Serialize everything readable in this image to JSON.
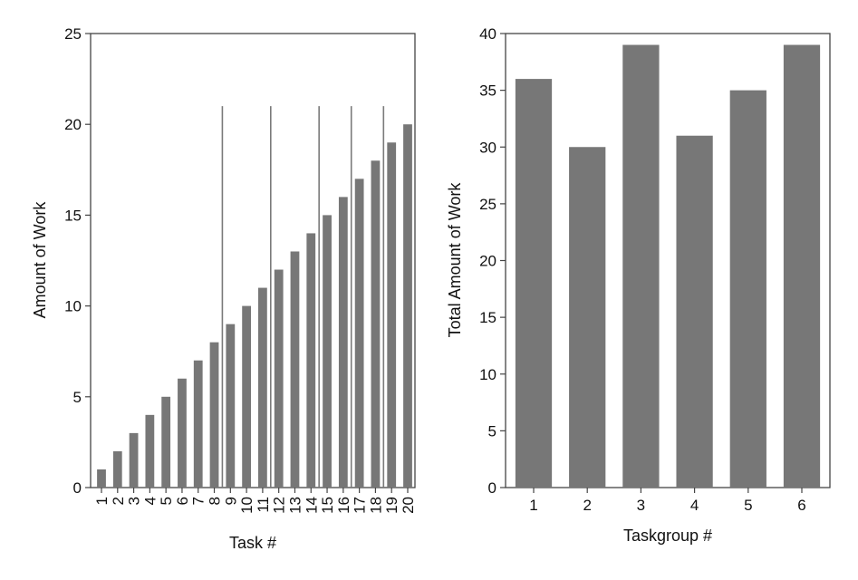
{
  "bar_color": "#777777",
  "chart_data": [
    {
      "type": "bar",
      "xlabel": "Task #",
      "ylabel": "Amount of Work",
      "ylim": [
        0,
        25
      ],
      "yticks": [
        0,
        5,
        10,
        15,
        20,
        25
      ],
      "categories": [
        "1",
        "2",
        "3",
        "4",
        "5",
        "6",
        "7",
        "8",
        "9",
        "10",
        "11",
        "12",
        "13",
        "14",
        "15",
        "16",
        "17",
        "18",
        "19",
        "20"
      ],
      "values": [
        1,
        2,
        3,
        4,
        5,
        6,
        7,
        8,
        9,
        10,
        11,
        12,
        13,
        14,
        15,
        16,
        17,
        18,
        19,
        20
      ],
      "group_separators_after_tasks": [
        8,
        11,
        14,
        16,
        18
      ],
      "separator_height": 21,
      "grid": false
    },
    {
      "type": "bar",
      "xlabel": "Taskgroup #",
      "ylabel": "Total Amount of Work",
      "ylim": [
        0,
        40
      ],
      "yticks": [
        0,
        5,
        10,
        15,
        20,
        25,
        30,
        35,
        40
      ],
      "categories": [
        "1",
        "2",
        "3",
        "4",
        "5",
        "6"
      ],
      "values": [
        36,
        30,
        39,
        31,
        35,
        39
      ],
      "grid": false
    }
  ]
}
